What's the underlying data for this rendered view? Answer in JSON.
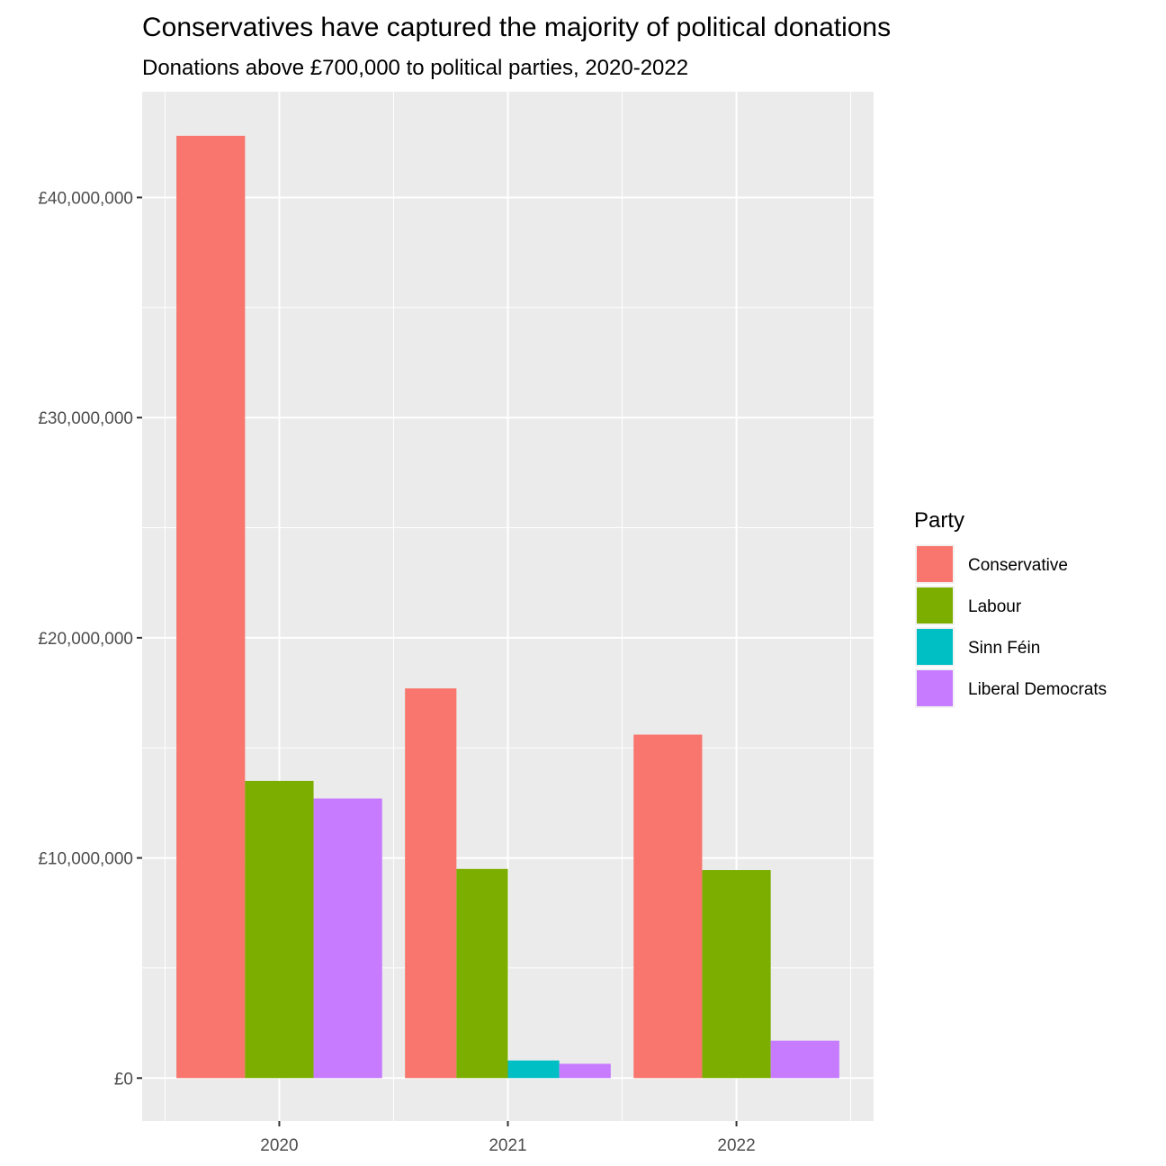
{
  "chart_data": {
    "type": "bar",
    "title": "Conservatives have captured the majority of political donations",
    "subtitle": "Donations above £700,000 to political parties, 2020-2022",
    "xlabel": "",
    "ylabel": "",
    "categories": [
      "2020",
      "2021",
      "2022"
    ],
    "y_ticks": [
      0,
      10000000,
      20000000,
      30000000,
      40000000
    ],
    "y_tick_labels": [
      "£0",
      "£10,000,000",
      "£20,000,000",
      "£30,000,000",
      "£40,000,000"
    ],
    "ylim": [
      -1950000,
      44800000
    ],
    "grid": true,
    "legend": {
      "title": "Party",
      "position": "right"
    },
    "series": [
      {
        "name": "Conservative",
        "color": "#F8766D",
        "values": [
          42800000,
          17700000,
          15600000
        ]
      },
      {
        "name": "Labour",
        "color": "#7CAE00",
        "values": [
          13500000,
          9500000,
          9450000
        ]
      },
      {
        "name": "Sinn Féin",
        "color": "#00BFC4",
        "values": [
          null,
          800000,
          null
        ]
      },
      {
        "name": "Liberal Democrats",
        "color": "#C77CFF",
        "values": [
          12700000,
          650000,
          1700000
        ]
      }
    ]
  }
}
